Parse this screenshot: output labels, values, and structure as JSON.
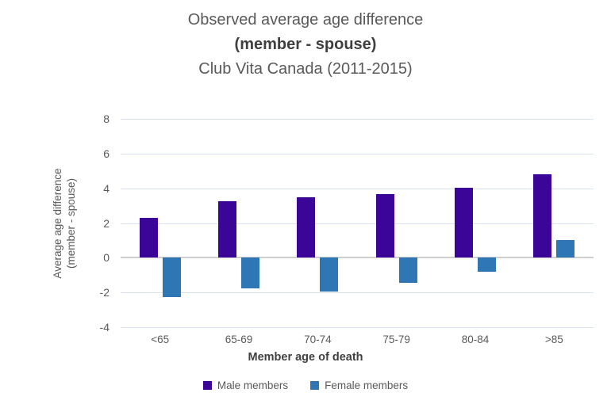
{
  "title": {
    "line1": "Observed average age difference",
    "line2": "(member - spouse)",
    "line3": "Club Vita Canada (2011-2015)"
  },
  "axes": {
    "y_label_line1": "Average age difference",
    "y_label_line2": "(member - spouse)",
    "x_label": "Member age of death"
  },
  "chart_data": {
    "type": "bar",
    "title": "Observed average age difference (member - spouse) Club Vita Canada (2011-2015)",
    "categories": [
      "<65",
      "65-69",
      "70-74",
      "75-79",
      "80-84",
      ">85"
    ],
    "series": [
      {
        "name": "Male members",
        "color": "#3B0697",
        "values": [
          2.3,
          3.25,
          3.5,
          3.65,
          4.05,
          4.8
        ]
      },
      {
        "name": "Female members",
        "color": "#2F76B5",
        "values": [
          -2.25,
          -1.75,
          -1.95,
          -1.45,
          -0.8,
          1.0
        ]
      }
    ],
    "xlabel": "Member age of death",
    "ylabel": "Average age difference (member - spouse)",
    "ylim": [
      -4,
      8
    ],
    "yticks": [
      8,
      6,
      4,
      2,
      0,
      -2,
      -4
    ],
    "grid": true,
    "legend_position": "bottom"
  },
  "colors": {
    "grid": "#DAE3F3",
    "zero_line": "#CFCFCF",
    "text": "#595959",
    "text_dark": "#404040",
    "background": "#FFFFFF"
  }
}
